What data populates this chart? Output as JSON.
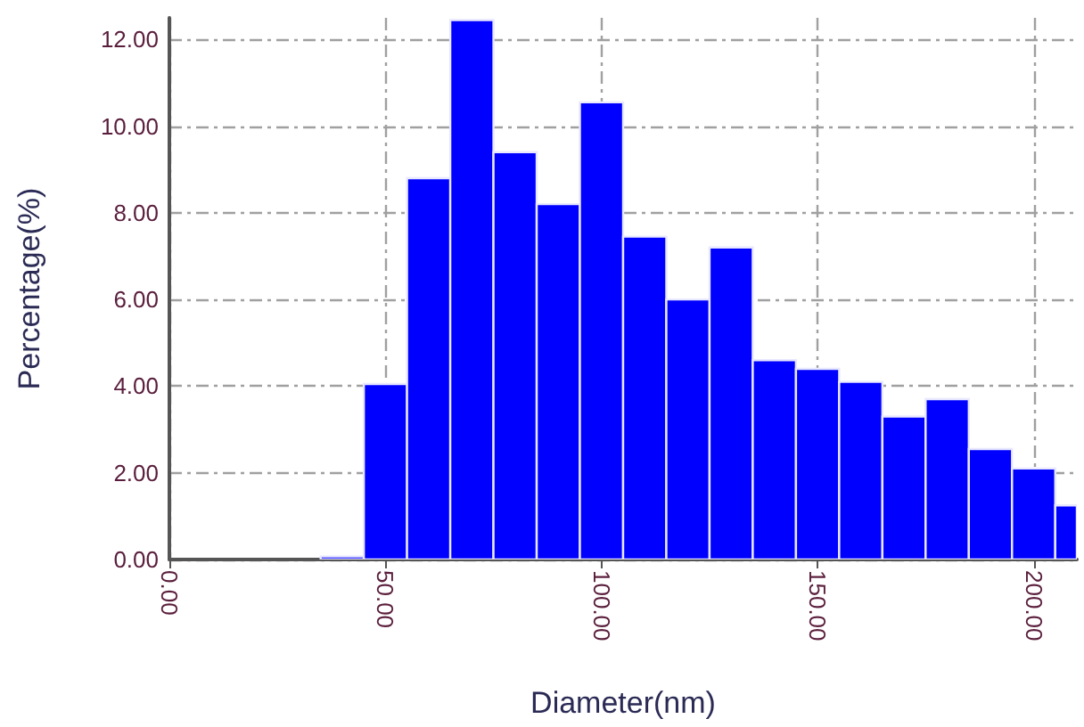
{
  "chart_data": {
    "type": "histogram",
    "xlabel": "Diameter(nm)",
    "ylabel": "Percentage(%)",
    "bins": [
      35,
      45,
      55,
      65,
      75,
      85,
      95,
      105,
      115,
      125,
      135,
      145,
      155,
      165,
      175,
      185,
      195,
      205,
      210
    ],
    "values": [
      0.07,
      4.05,
      8.8,
      12.45,
      9.4,
      8.2,
      10.55,
      7.45,
      6.0,
      7.2,
      4.6,
      4.4,
      4.1,
      3.3,
      3.7,
      2.55,
      2.1,
      1.25
    ],
    "color": "#0000ff",
    "xlim": [
      0,
      210
    ],
    "xticks": [
      {
        "value": 0,
        "label": "0.00"
      },
      {
        "value": 50,
        "label": "50.00"
      },
      {
        "value": 100,
        "label": "100.00"
      },
      {
        "value": 150,
        "label": "150.00"
      },
      {
        "value": 200,
        "label": "200.00"
      }
    ],
    "ylim": [
      0,
      12.5
    ],
    "yticks": [
      {
        "value": 0,
        "label": "0.00"
      },
      {
        "value": 2,
        "label": "2.00"
      },
      {
        "value": 4,
        "label": "4.00"
      },
      {
        "value": 6,
        "label": "6.00"
      },
      {
        "value": 8,
        "label": "8.00"
      },
      {
        "value": 10,
        "label": "10.00"
      },
      {
        "value": 12,
        "label": "12.00"
      }
    ],
    "grid": true
  }
}
